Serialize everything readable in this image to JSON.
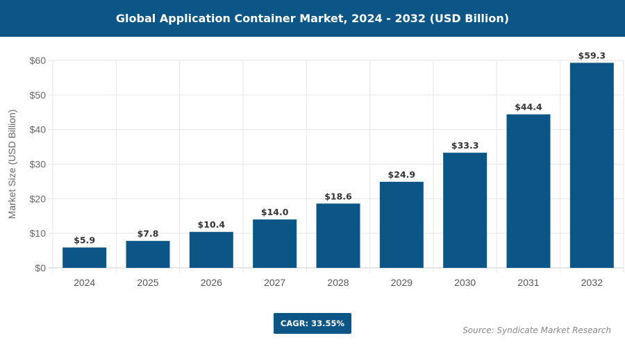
{
  "header": {
    "title": "Global Application Container Market, 2024 - 2032 (USD Billion)"
  },
  "chart_data": {
    "type": "bar",
    "title": "Global Application Container Market, 2024 - 2032 (USD Billion)",
    "categories": [
      "2024",
      "2025",
      "2026",
      "2027",
      "2028",
      "2029",
      "2030",
      "2031",
      "2032"
    ],
    "values": [
      5.9,
      7.8,
      10.4,
      14.0,
      18.6,
      24.9,
      33.3,
      44.4,
      59.3
    ],
    "data_labels": [
      "$5.9",
      "$7.8",
      "$10.4",
      "$14.0",
      "$18.6",
      "$24.9",
      "$33.3",
      "$44.4",
      "$59.3"
    ],
    "xlabel": "",
    "ylabel": "Market Size (USD Billion)",
    "ylim": [
      0,
      60
    ],
    "yticks": [
      0,
      10,
      20,
      30,
      40,
      50,
      60
    ],
    "ytick_labels": [
      "$0",
      "$10",
      "$20",
      "$30",
      "$40",
      "$50",
      "$60"
    ],
    "grid": true,
    "bar_color": "#0b5687"
  },
  "footer": {
    "cagr": "CAGR: 33.55%",
    "source": "Source: Syndicate Market Research"
  }
}
